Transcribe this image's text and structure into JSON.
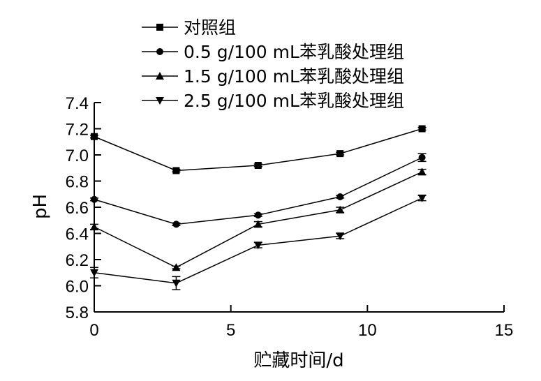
{
  "chart_data": {
    "type": "line",
    "xlabel": "贮藏时间/d",
    "ylabel": "pH",
    "xlim": [
      0,
      15
    ],
    "ylim": [
      5.8,
      7.4
    ],
    "x_ticks": [
      0,
      5,
      10,
      15
    ],
    "x_tick_labels": [
      "0",
      "5",
      "10",
      "15"
    ],
    "y_ticks": [
      5.8,
      6.0,
      6.2,
      6.4,
      6.6,
      6.8,
      7.0,
      7.2,
      7.4
    ],
    "y_tick_labels": [
      "5.8",
      "6.0",
      "6.2",
      "6.4",
      "6.6",
      "6.8",
      "7.0",
      "7.2",
      "7.4"
    ],
    "grid": false,
    "legend_position": "top",
    "x": [
      0,
      3,
      6,
      9,
      12
    ],
    "series": [
      {
        "name": "对照组",
        "marker": "square",
        "values": [
          7.14,
          6.88,
          6.92,
          7.01,
          7.2
        ],
        "errors": [
          0.01,
          0.01,
          0.01,
          0.01,
          0.01
        ]
      },
      {
        "name": "0.5 g/100 mL苯乳酸处理组",
        "marker": "circle",
        "values": [
          6.66,
          6.47,
          6.54,
          6.68,
          6.98
        ],
        "errors": [
          0.01,
          0.01,
          0.01,
          0.01,
          0.03
        ]
      },
      {
        "name": "1.5 g/100 mL苯乳酸处理组",
        "marker": "triangle-up",
        "values": [
          6.45,
          6.14,
          6.47,
          6.58,
          6.87
        ],
        "errors": [
          0.02,
          0.01,
          0.02,
          0.02,
          0.02
        ]
      },
      {
        "name": "2.5 g/100 mL苯乳酸处理组",
        "marker": "triangle-down",
        "values": [
          6.1,
          6.02,
          6.31,
          6.38,
          6.67
        ],
        "errors": [
          0.04,
          0.05,
          0.02,
          0.02,
          0.02
        ]
      }
    ]
  }
}
